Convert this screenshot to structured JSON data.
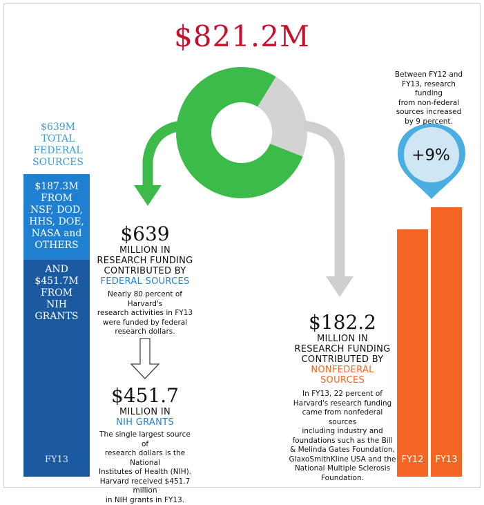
{
  "header": {
    "total": "$821.2M"
  },
  "federal": {
    "total_value": "$639M",
    "total_label_1": "TOTAL",
    "total_label_2": "FEDERAL",
    "total_label_3": "SOURCES",
    "other_value": "$187.3M",
    "other_l1": "FROM",
    "other_l2": "NSF, DOD,",
    "other_l3": "HHS, DOE,",
    "other_l4": "NASA and",
    "other_l5": "OTHERS",
    "nih_l0": "AND",
    "nih_value": "$451.7M",
    "nih_l1": "FROM",
    "nih_l2": "NIH",
    "nih_l3": "GRANTS",
    "fy": "FY13"
  },
  "federal_block": {
    "amount": "$639",
    "l1": "MILLION IN",
    "l2": "RESEARCH FUNDING",
    "l3": "CONTRIBUTED  BY",
    "l4": "FEDERAL SOURCES",
    "d1": "Nearly 80 percent of Harvard's",
    "d2": "research activities in FY13",
    "d3": "were funded by federal",
    "d4": "research dollars."
  },
  "nih_block": {
    "amount": "$451.7",
    "l1": "MILLION IN",
    "l2": "NIH GRANTS",
    "d1": "The single largest source of",
    "d2": "research dollars is the National",
    "d3": "Institutes of Health (NIH).",
    "d4": "Harvard received $451.7 million",
    "d5": "in NIH grants in FY13."
  },
  "nonfed_block": {
    "amount": "$182.2",
    "l1": "MILLION IN",
    "l2": "RESEARCH FUNDING",
    "l3": "CONTRIBUTED BY",
    "l4": "NONFEDERAL",
    "l5": "SOURCES",
    "d1": "In FY13, 22 percent of",
    "d2": "Harvard's research funding",
    "d3": "came from nonfederal sources",
    "d4": "including industry and",
    "d5": "foundations such as the Bill",
    "d6": "& Melinda Gates Foundation,",
    "d7": "GlaxoSmithKline USA and the",
    "d8": "National Multiple Sclerosis",
    "d9": "Foundation."
  },
  "growth": {
    "note1": "Between FY12 and",
    "note2": "FY13, research funding",
    "note3": "from non-federal",
    "note4": "sources increased",
    "note5": "by 9 percent.",
    "badge": "+9%"
  },
  "colors": {
    "federal": "#3dbb4a",
    "nonfederal": "#d3d3d3",
    "accent_red": "#c8102e",
    "blue_light": "#1f7fd0",
    "blue_dark": "#1b5aa0",
    "orange": "#f26522",
    "pin": "#4aaee0",
    "pin_fill": "#cfe6f5"
  },
  "chart_data": [
    {
      "type": "pie",
      "categories": [
        "Federal sources",
        "Nonfederal sources"
      ],
      "values": [
        639,
        182.2
      ],
      "title": "$821.2M"
    },
    {
      "type": "bar",
      "categories": [
        "FY12",
        "FY13"
      ],
      "values": [
        167.2,
        182.2
      ],
      "title": ""
    }
  ]
}
